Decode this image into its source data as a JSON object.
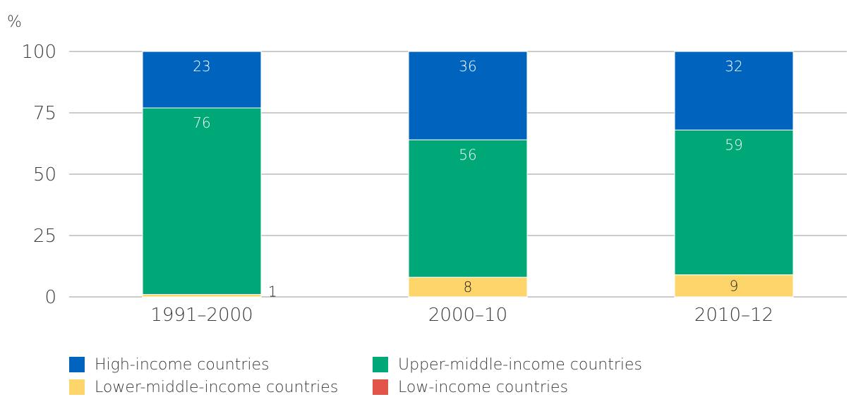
{
  "chart_data": {
    "type": "bar",
    "stacked": true,
    "ylabel": "%",
    "ylim": [
      0,
      100
    ],
    "yticks": [
      0,
      25,
      50,
      75,
      100
    ],
    "grid": true,
    "categories": [
      "1991–2000",
      "2000–10",
      "2010–12"
    ],
    "series": [
      {
        "name": "Low-income countries",
        "color": "#e2534a",
        "values": [
          0,
          0,
          0
        ],
        "labels": [
          "",
          "",
          ""
        ]
      },
      {
        "name": "Lower-middle-income countries",
        "color": "#fdd56b",
        "values": [
          1,
          8,
          9
        ],
        "labels": [
          "1",
          "8",
          "9"
        ]
      },
      {
        "name": "Upper-middle-income countries",
        "color": "#00a878",
        "values": [
          76,
          56,
          59
        ],
        "labels": [
          "76",
          "56",
          "59"
        ]
      },
      {
        "name": "High-income countries",
        "color": "#0064bf",
        "values": [
          23,
          36,
          32
        ],
        "labels": [
          "23",
          "36",
          "32"
        ]
      }
    ],
    "legend_order": [
      3,
      2,
      1,
      0
    ],
    "legend_position": "bottom"
  }
}
